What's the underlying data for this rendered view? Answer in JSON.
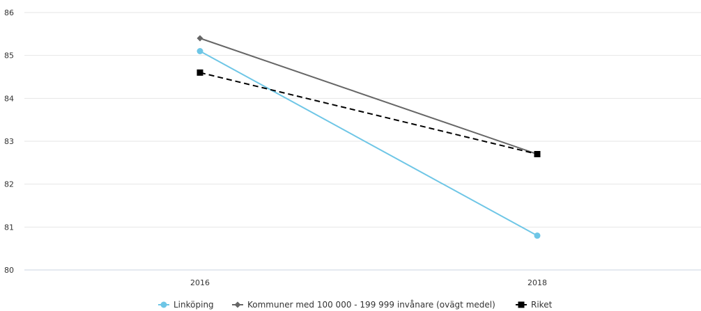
{
  "chart_data": {
    "type": "line",
    "categories": [
      "2016",
      "2018"
    ],
    "ylim": [
      80,
      86
    ],
    "yticks": [
      "80",
      "81",
      "82",
      "83",
      "84",
      "85",
      "86"
    ],
    "grid": true,
    "legend_position": "bottom",
    "series": [
      {
        "name": "Linköping",
        "values": [
          85.1,
          80.8
        ],
        "color": "#6ec6e6",
        "marker": "circle",
        "dash": false
      },
      {
        "name": "Kommuner med 100 000 - 199 999 invånare (ovägt medel)",
        "values": [
          85.4,
          82.7
        ],
        "color": "#666666",
        "marker": "diamond",
        "dash": false
      },
      {
        "name": "Riket",
        "values": [
          84.6,
          82.7
        ],
        "color": "#000000",
        "marker": "square",
        "dash": true
      }
    ]
  }
}
